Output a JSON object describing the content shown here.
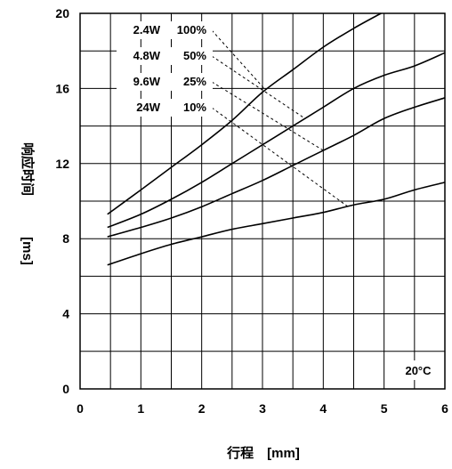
{
  "chart_data": {
    "type": "line",
    "title": "",
    "xlabel": "行程　[mm]",
    "ylabel_main": "响应时间",
    "ylabel_unit": "[ms]",
    "xlim": [
      0,
      6
    ],
    "ylim": [
      0,
      20
    ],
    "x_ticks": [
      "0",
      "1",
      "2",
      "3",
      "4",
      "5",
      "6"
    ],
    "y_ticks": [
      "0",
      "4",
      "8",
      "12",
      "16",
      "20"
    ],
    "grid": true,
    "annotation": "20°C",
    "legend": [
      {
        "power": "2.4W",
        "duty": "100%"
      },
      {
        "power": "4.8W",
        "duty": "50%"
      },
      {
        "power": "9.6W",
        "duty": "25%"
      },
      {
        "power": "24W",
        "duty": "10%"
      }
    ],
    "series": [
      {
        "name": "2.4W 100%",
        "x": [
          0.45,
          1.0,
          1.5,
          2.0,
          2.5,
          3.0,
          3.5,
          4.0,
          4.5,
          4.95
        ],
        "y": [
          9.3,
          10.6,
          11.8,
          13.0,
          14.3,
          15.8,
          17.0,
          18.2,
          19.2,
          20.0
        ]
      },
      {
        "name": "4.8W 50%",
        "x": [
          0.45,
          1.0,
          1.5,
          2.0,
          2.5,
          3.0,
          3.5,
          4.0,
          4.5,
          5.0,
          5.5,
          6.0
        ],
        "y": [
          8.6,
          9.3,
          10.1,
          11.0,
          12.0,
          13.0,
          14.0,
          15.0,
          16.0,
          16.7,
          17.2,
          17.9
        ]
      },
      {
        "name": "9.6W 25%",
        "x": [
          0.45,
          1.0,
          1.5,
          2.0,
          2.5,
          3.0,
          3.5,
          4.0,
          4.5,
          5.0,
          5.5,
          6.0
        ],
        "y": [
          8.1,
          8.6,
          9.1,
          9.7,
          10.4,
          11.1,
          11.9,
          12.7,
          13.5,
          14.4,
          15.0,
          15.5
        ]
      },
      {
        "name": "24W 10%",
        "x": [
          0.45,
          1.0,
          1.5,
          2.0,
          2.5,
          3.0,
          3.5,
          4.0,
          4.5,
          5.0,
          5.5,
          6.0
        ],
        "y": [
          6.6,
          7.2,
          7.7,
          8.1,
          8.5,
          8.8,
          9.1,
          9.4,
          9.8,
          10.1,
          10.6,
          11.0
        ]
      }
    ]
  }
}
